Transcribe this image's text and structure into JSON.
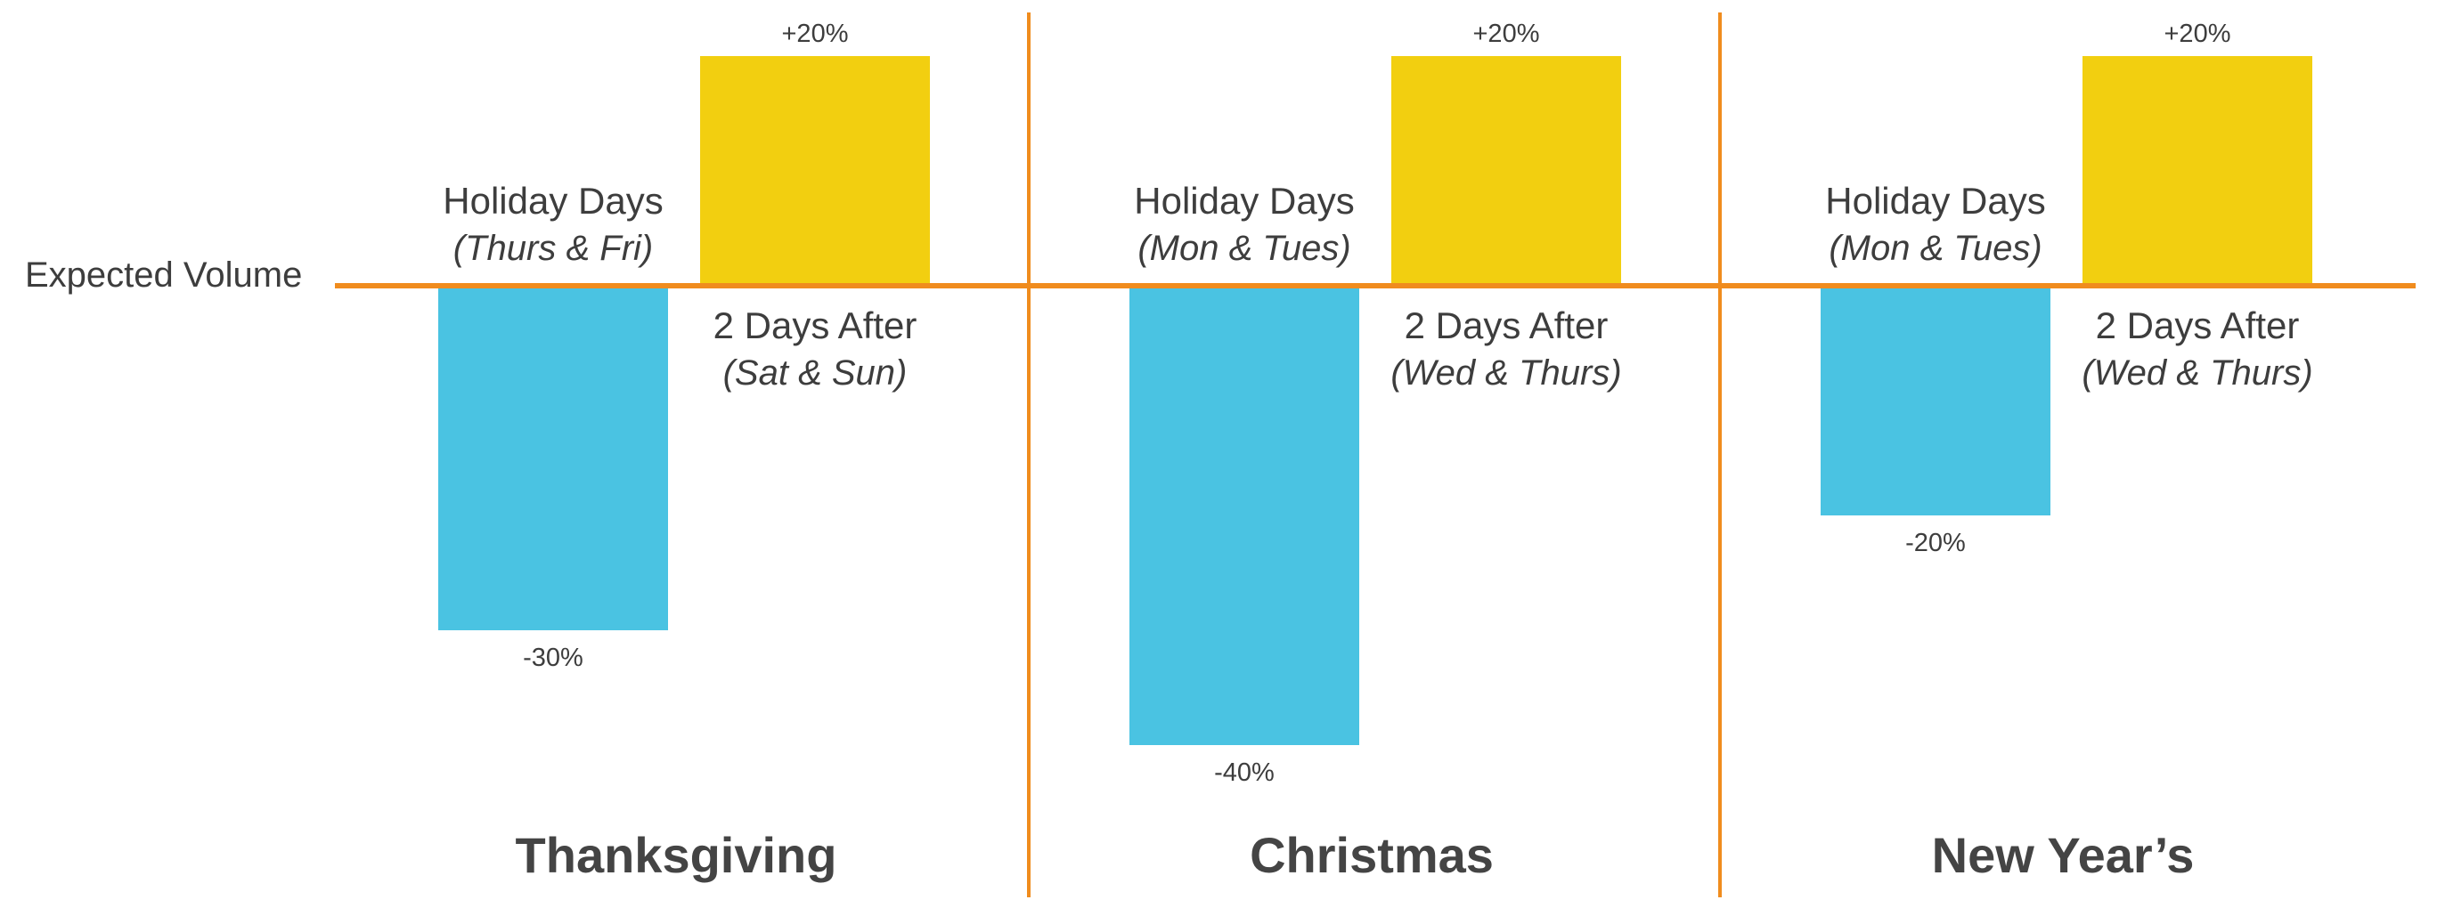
{
  "chart_data": {
    "type": "bar",
    "reference_line_label": "Expected Volume",
    "y_unit": "%",
    "ylim": [
      -45,
      22
    ],
    "grid": false,
    "legend": "none",
    "colors": {
      "holiday_days": "#4ac3e2",
      "days_after": "#f2cf10",
      "reference_line": "#f08c1e",
      "divider": "#f08c1e",
      "text": "#3d3d3d",
      "title": "#444444"
    },
    "groups": [
      {
        "title": "Thanksgiving",
        "bars": [
          {
            "label": "Holiday Days",
            "sublabel": "(Thurs & Fri)",
            "value": -30,
            "value_label": "-30%",
            "kind": "holiday_days"
          },
          {
            "label": "2 Days After",
            "sublabel": "(Sat & Sun)",
            "value": 20,
            "value_label": "+20%",
            "kind": "days_after"
          }
        ]
      },
      {
        "title": "Christmas",
        "bars": [
          {
            "label": "Holiday Days",
            "sublabel": "(Mon & Tues)",
            "value": -40,
            "value_label": "-40%",
            "kind": "holiday_days"
          },
          {
            "label": "2 Days After",
            "sublabel": "(Wed & Thurs)",
            "value": 20,
            "value_label": "+20%",
            "kind": "days_after"
          }
        ]
      },
      {
        "title": "New Year’s",
        "bars": [
          {
            "label": "Holiday Days",
            "sublabel": "(Mon & Tues)",
            "value": -20,
            "value_label": "-20%",
            "kind": "holiday_days"
          },
          {
            "label": "2 Days After",
            "sublabel": "(Wed & Thurs)",
            "value": 20,
            "value_label": "+20%",
            "kind": "days_after"
          }
        ]
      }
    ]
  }
}
